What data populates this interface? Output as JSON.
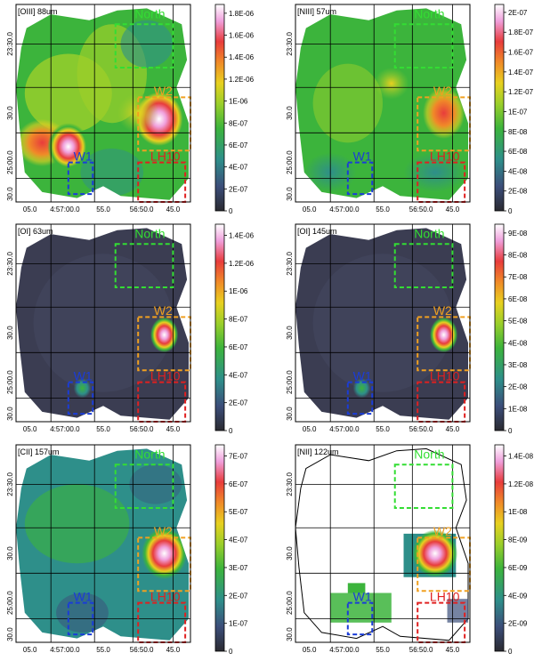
{
  "panels": [
    {
      "id": "oiii88",
      "line_label": "[OIII] 88um",
      "colorbar_ticks": [
        "0",
        "2E-07",
        "4E-07",
        "6E-07",
        "8E-07",
        "1E-06",
        "1.2E-06",
        "1.4E-06",
        "1.6E-06",
        "1.8E-06"
      ],
      "style": "oiii"
    },
    {
      "id": "niii57",
      "line_label": "[NIII] 57um",
      "colorbar_ticks": [
        "0",
        "2E-08",
        "4E-08",
        "6E-08",
        "8E-08",
        "1E-07",
        "1.2E-07",
        "1.4E-07",
        "1.6E-07",
        "1.8E-07",
        "2E-07"
      ],
      "style": "niii"
    },
    {
      "id": "oi63",
      "line_label": "[OI] 63um",
      "colorbar_ticks": [
        "0",
        "2E-07",
        "4E-07",
        "6E-07",
        "8E-07",
        "1E-06",
        "1.2E-06",
        "1.4E-06"
      ],
      "style": "oi"
    },
    {
      "id": "oi145",
      "line_label": "[OI] 145um",
      "colorbar_ticks": [
        "0",
        "1E-08",
        "2E-08",
        "3E-08",
        "4E-08",
        "5E-08",
        "6E-08",
        "7E-08",
        "8E-08",
        "9E-08"
      ],
      "style": "oi"
    },
    {
      "id": "cii157",
      "line_label": "[CII] 157um",
      "colorbar_ticks": [
        "0",
        "1E-07",
        "2E-07",
        "3E-07",
        "4E-07",
        "5E-07",
        "6E-07",
        "7E-07"
      ],
      "style": "cii"
    },
    {
      "id": "nii122",
      "line_label": "[NII] 122um",
      "colorbar_ticks": [
        "0",
        "2E-09",
        "4E-09",
        "6E-09",
        "8E-09",
        "1E-08",
        "1.2E-08",
        "1.4E-08"
      ],
      "style": "nii"
    }
  ],
  "x_ticks": [
    "05.0",
    "4:57:00.0",
    "55.0",
    "56:50.0",
    "45.0"
  ],
  "y_ticks": [
    "23:30.0",
    "30.0",
    "25:00.0",
    "30.0"
  ],
  "regions": [
    {
      "name": "North",
      "color": "#33dd33"
    },
    {
      "name": "W2",
      "color": "#f0a020"
    },
    {
      "name": "W1",
      "color": "#1a3cd8"
    },
    {
      "name": "LH10",
      "color": "#e02020"
    }
  ],
  "colormap": [
    "#2a2a30",
    "#3c4e7a",
    "#2e8f8a",
    "#3cb43c",
    "#9ccf2a",
    "#e8d020",
    "#f08a28",
    "#e83c3c",
    "#f0a0dc",
    "#ffffff"
  ]
}
